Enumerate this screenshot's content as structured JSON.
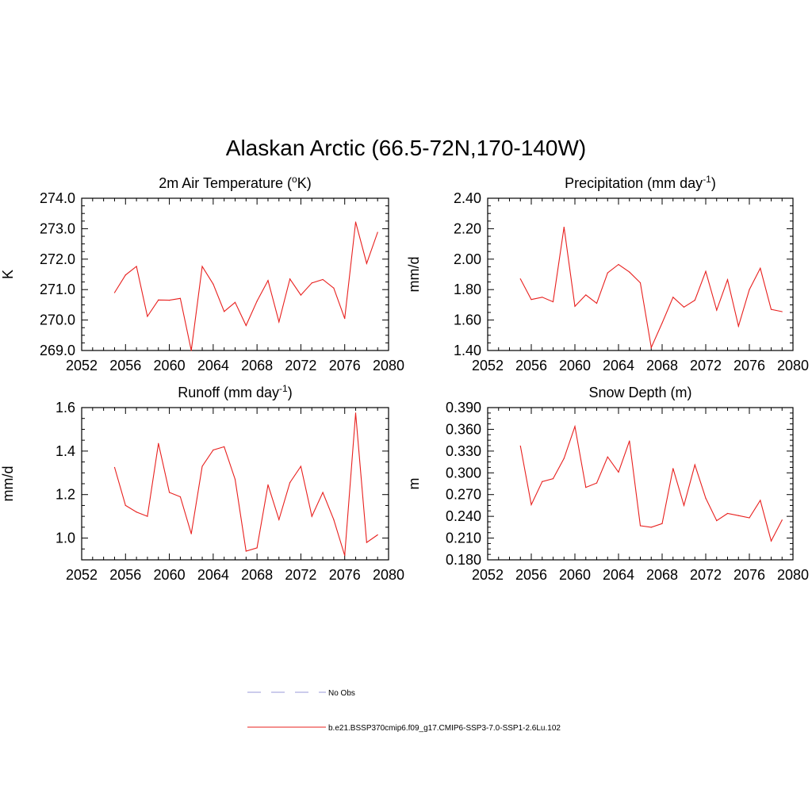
{
  "title": "Alaskan Arctic (66.5-72N,170-140W)",
  "colors": {
    "series": "#e8201e",
    "obs": "#9a9ad8",
    "axis": "#000000"
  },
  "legend": {
    "entries": [
      {
        "label": "No Obs",
        "style": "dashed",
        "color": "#9a9ad8"
      },
      {
        "label": "b.e21.BSSP370cmip6.f09_g17.CMIP6-SSP3-7.0-SSP1-2.6Lu.102",
        "style": "solid",
        "color": "#e8201e"
      }
    ]
  },
  "chart_data": [
    {
      "type": "line",
      "title_main": "2m Air Temperature (",
      "title_sup": "o",
      "title_rest": "K)",
      "ylabel": "K",
      "xlim": [
        2052,
        2080
      ],
      "xticks": [
        "2052",
        "2056",
        "2060",
        "2064",
        "2068",
        "2072",
        "2076",
        "2080"
      ],
      "ylim": [
        269.0,
        274.0
      ],
      "yticks": [
        "269.0",
        "270.0",
        "271.0",
        "272.0",
        "273.0",
        "274.0"
      ],
      "x": [
        2055,
        2056,
        2057,
        2058,
        2059,
        2060,
        2061,
        2062,
        2063,
        2064,
        2065,
        2066,
        2067,
        2068,
        2069,
        2070,
        2071,
        2072,
        2073,
        2074,
        2075,
        2076,
        2077,
        2078,
        2079
      ],
      "y": [
        270.9,
        271.48,
        271.76,
        270.12,
        270.66,
        270.65,
        270.71,
        269.0,
        271.76,
        271.18,
        270.28,
        270.58,
        269.82,
        270.62,
        271.3,
        269.94,
        271.35,
        270.82,
        271.22,
        271.33,
        271.05,
        270.05,
        273.22,
        271.86,
        272.88
      ]
    },
    {
      "type": "line",
      "title_main": "Precipitation (mm day",
      "title_sup": "-1",
      "title_rest": ")",
      "ylabel": "mm/d",
      "xlim": [
        2052,
        2080
      ],
      "xticks": [
        "2052",
        "2056",
        "2060",
        "2064",
        "2068",
        "2072",
        "2076",
        "2080"
      ],
      "ylim": [
        1.4,
        2.4
      ],
      "yticks": [
        "1.40",
        "1.60",
        "1.80",
        "2.00",
        "2.20",
        "2.40"
      ],
      "x": [
        2055,
        2056,
        2057,
        2058,
        2059,
        2060,
        2061,
        2062,
        2063,
        2064,
        2065,
        2066,
        2067,
        2068,
        2069,
        2070,
        2071,
        2072,
        2073,
        2074,
        2075,
        2076,
        2077,
        2078,
        2079
      ],
      "y": [
        1.87,
        1.735,
        1.75,
        1.72,
        2.21,
        1.69,
        1.765,
        1.71,
        1.91,
        1.965,
        1.915,
        1.845,
        1.42,
        1.58,
        1.75,
        1.685,
        1.73,
        1.92,
        1.665,
        1.865,
        1.56,
        1.8,
        1.94,
        1.67,
        1.655
      ]
    },
    {
      "type": "line",
      "title_main": "Runoff (mm day",
      "title_sup": "-1",
      "title_rest": ")",
      "ylabel": "mm/d",
      "xlim": [
        2052,
        2080
      ],
      "xticks": [
        "2052",
        "2056",
        "2060",
        "2064",
        "2068",
        "2072",
        "2076",
        "2080"
      ],
      "ylim": [
        0.9,
        1.6
      ],
      "yticks": [
        "1.0",
        "1.2",
        "1.4",
        "1.6"
      ],
      "ytick_values": [
        1.0,
        1.2,
        1.4,
        1.6
      ],
      "x": [
        2055,
        2056,
        2057,
        2058,
        2059,
        2060,
        2061,
        2062,
        2063,
        2064,
        2065,
        2066,
        2067,
        2068,
        2069,
        2070,
        2071,
        2072,
        2073,
        2074,
        2075,
        2076,
        2077,
        2078,
        2079
      ],
      "y": [
        1.325,
        1.15,
        1.12,
        1.1,
        1.435,
        1.21,
        1.19,
        1.02,
        1.33,
        1.405,
        1.42,
        1.27,
        0.94,
        0.955,
        1.245,
        1.085,
        1.255,
        1.33,
        1.1,
        1.21,
        1.085,
        0.92,
        1.575,
        0.98,
        1.015
      ]
    },
    {
      "type": "line",
      "title_main": "Snow Depth (m)",
      "title_sup": "",
      "title_rest": "",
      "ylabel": "m",
      "xlim": [
        2052,
        2080
      ],
      "xticks": [
        "2052",
        "2056",
        "2060",
        "2064",
        "2068",
        "2072",
        "2076",
        "2080"
      ],
      "ylim": [
        0.18,
        0.39
      ],
      "yticks": [
        "0.180",
        "0.210",
        "0.240",
        "0.270",
        "0.300",
        "0.330",
        "0.360",
        "0.390"
      ],
      "x": [
        2055,
        2056,
        2057,
        2058,
        2059,
        2060,
        2061,
        2062,
        2063,
        2064,
        2065,
        2066,
        2067,
        2068,
        2069,
        2070,
        2071,
        2072,
        2073,
        2074,
        2075,
        2076,
        2077,
        2078,
        2079
      ],
      "y": [
        0.337,
        0.256,
        0.288,
        0.292,
        0.32,
        0.364,
        0.28,
        0.286,
        0.322,
        0.301,
        0.344,
        0.227,
        0.225,
        0.23,
        0.306,
        0.255,
        0.311,
        0.265,
        0.234,
        0.244,
        0.241,
        0.238,
        0.262,
        0.206,
        0.235
      ]
    }
  ]
}
